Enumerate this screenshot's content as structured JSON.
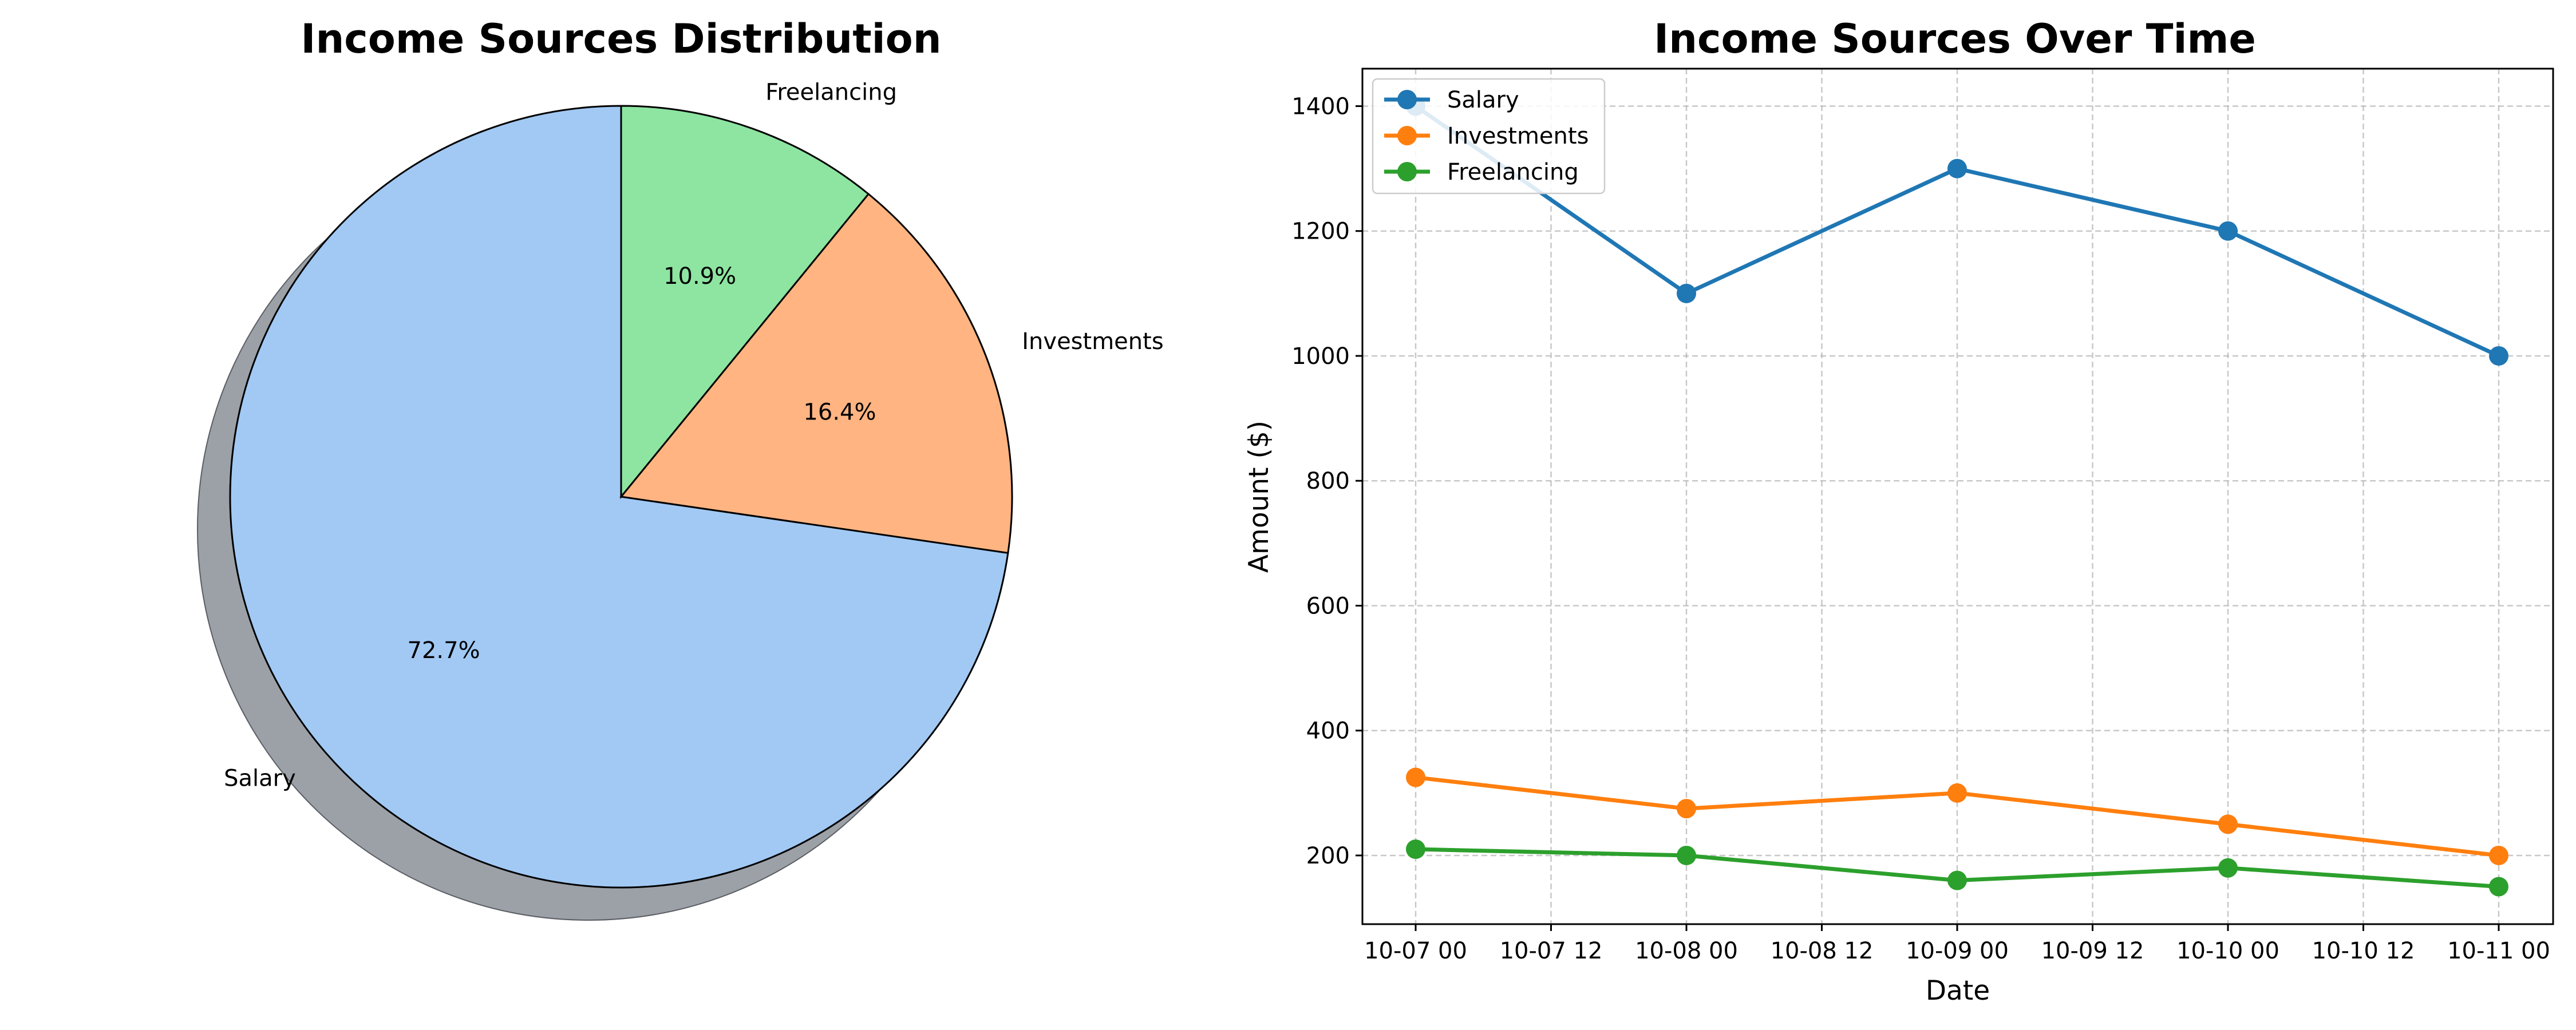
{
  "chart_data": [
    {
      "type": "pie",
      "title": "Income Sources Distribution",
      "categories": [
        "Salary",
        "Investments",
        "Freelancing"
      ],
      "values": [
        72.7,
        16.4,
        10.9
      ],
      "labels": [
        "72.7%",
        "16.4%",
        "10.9%"
      ],
      "colors": [
        "#a1c9f4",
        "#ffb482",
        "#8de5a1"
      ],
      "shadow": true
    },
    {
      "type": "line",
      "title": "Income Sources Over Time",
      "xlabel": "Date",
      "ylabel": "Amount ($)",
      "x": [
        "2023-10-07",
        "2023-10-08",
        "2023-10-09",
        "2023-10-10",
        "2023-10-11"
      ],
      "x_tick_labels": [
        "10-07 00",
        "10-07 12",
        "10-08 00",
        "10-08 12",
        "10-09 00",
        "10-09 12",
        "10-10 00",
        "10-10 12",
        "10-11 00"
      ],
      "y_tick_labels": [
        "200",
        "400",
        "600",
        "800",
        "1000",
        "1200",
        "1400"
      ],
      "ylim": [
        90,
        1460
      ],
      "grid": true,
      "legend": "top-left",
      "series": [
        {
          "name": "Salary",
          "color": "#1f77b4",
          "values": [
            1400,
            1100,
            1300,
            1200,
            1000
          ]
        },
        {
          "name": "Investments",
          "color": "#ff7f0e",
          "values": [
            325,
            275,
            300,
            250,
            200
          ]
        },
        {
          "name": "Freelancing",
          "color": "#2ca02c",
          "values": [
            210,
            200,
            160,
            180,
            150
          ]
        }
      ]
    }
  ]
}
